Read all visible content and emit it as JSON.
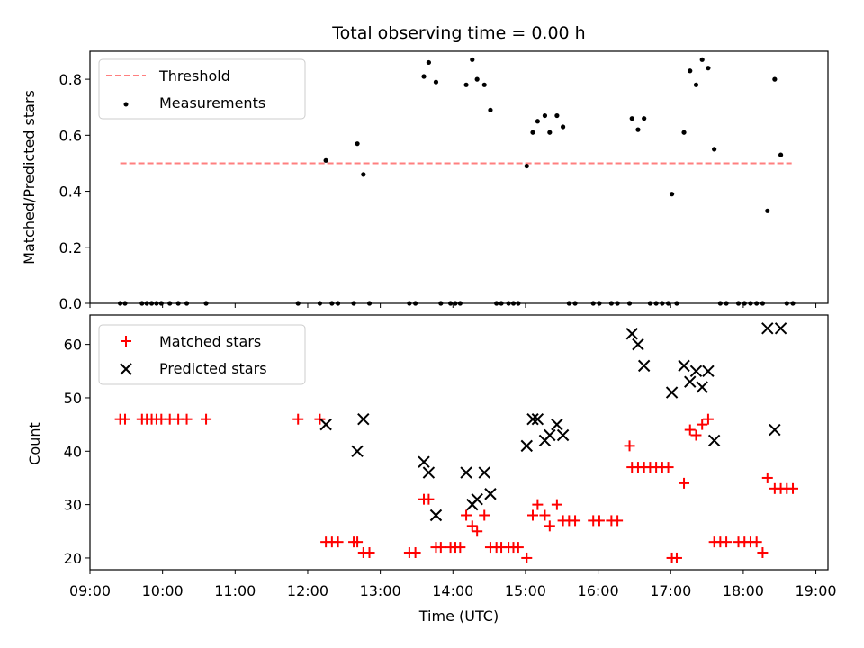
{
  "chart_data": [
    {
      "type": "scatter",
      "title": "Total observing time = 0.00 h",
      "xlabel": "",
      "ylabel": "Matched/Predicted stars",
      "xlim": [
        "09:00",
        "19:10"
      ],
      "ylim": [
        0,
        0.9
      ],
      "yticks": [
        0.0,
        0.2,
        0.4,
        0.6,
        0.8
      ],
      "ytick_labels": [
        "0.0",
        "0.2",
        "0.4",
        "0.6",
        "0.8"
      ],
      "legend": "upper-left",
      "grid": false,
      "threshold": {
        "name": "Threshold",
        "value": 0.5,
        "x_range": [
          "09:25",
          "18:40"
        ],
        "color": "#ff7f7f",
        "style": "dashed"
      },
      "series": [
        {
          "name": "Measurements",
          "color": "#000000",
          "marker": "dot",
          "points": [
            [
              "09:25",
              0
            ],
            [
              "09:29",
              0
            ],
            [
              "09:43",
              0
            ],
            [
              "09:47",
              0
            ],
            [
              "09:51",
              0
            ],
            [
              "09:55",
              0
            ],
            [
              "09:59",
              0
            ],
            [
              "10:06",
              0
            ],
            [
              "10:13",
              0
            ],
            [
              "10:20",
              0
            ],
            [
              "10:36",
              0
            ],
            [
              "11:52",
              0
            ],
            [
              "12:10",
              0
            ],
            [
              "12:15",
              0.51
            ],
            [
              "12:20",
              0
            ],
            [
              "12:25",
              0
            ],
            [
              "12:38",
              0
            ],
            [
              "12:41",
              0.57
            ],
            [
              "12:46",
              0.46
            ],
            [
              "12:51",
              0
            ],
            [
              "13:24",
              0
            ],
            [
              "13:29",
              0
            ],
            [
              "13:36",
              0.81
            ],
            [
              "13:40",
              0.86
            ],
            [
              "13:46",
              0.79
            ],
            [
              "13:50",
              0
            ],
            [
              "13:58",
              0
            ],
            [
              "14:02",
              0
            ],
            [
              "14:06",
              0
            ],
            [
              "14:11",
              0.78
            ],
            [
              "14:16",
              0.87
            ],
            [
              "14:20",
              0.8
            ],
            [
              "14:26",
              0.78
            ],
            [
              "14:31",
              0.69
            ],
            [
              "14:36",
              0
            ],
            [
              "14:40",
              0
            ],
            [
              "14:46",
              0
            ],
            [
              "14:50",
              0
            ],
            [
              "14:54",
              0
            ],
            [
              "15:01",
              0.49
            ],
            [
              "15:06",
              0.61
            ],
            [
              "15:10",
              0.65
            ],
            [
              "15:16",
              0.67
            ],
            [
              "15:20",
              0.61
            ],
            [
              "15:26",
              0.67
            ],
            [
              "15:31",
              0.63
            ],
            [
              "15:36",
              0
            ],
            [
              "15:41",
              0
            ],
            [
              "15:56",
              0
            ],
            [
              "16:01",
              0
            ],
            [
              "16:11",
              0
            ],
            [
              "16:16",
              0
            ],
            [
              "16:26",
              0
            ],
            [
              "16:28",
              0.66
            ],
            [
              "16:33",
              0.62
            ],
            [
              "16:38",
              0.66
            ],
            [
              "16:43",
              0
            ],
            [
              "16:48",
              0
            ],
            [
              "16:53",
              0
            ],
            [
              "16:58",
              0
            ],
            [
              "17:01",
              0.39
            ],
            [
              "17:05",
              0
            ],
            [
              "17:11",
              0.61
            ],
            [
              "17:16",
              0.83
            ],
            [
              "17:21",
              0.78
            ],
            [
              "17:26",
              0.87
            ],
            [
              "17:31",
              0.84
            ],
            [
              "17:36",
              0.55
            ],
            [
              "17:41",
              0
            ],
            [
              "17:46",
              0
            ],
            [
              "17:56",
              0
            ],
            [
              "18:01",
              0
            ],
            [
              "18:06",
              0
            ],
            [
              "18:11",
              0
            ],
            [
              "18:16",
              0
            ],
            [
              "18:20",
              0.33
            ],
            [
              "18:26",
              0.8
            ],
            [
              "18:31",
              0.53
            ],
            [
              "18:36",
              0
            ],
            [
              "18:41",
              0
            ]
          ]
        }
      ]
    },
    {
      "type": "scatter",
      "title": "",
      "xlabel": "Time (UTC)",
      "ylabel": "Count",
      "xlim": [
        "09:00",
        "19:10"
      ],
      "ylim": [
        17.8,
        65.5
      ],
      "yticks": [
        20,
        30,
        40,
        50,
        60
      ],
      "ytick_labels": [
        "20",
        "30",
        "40",
        "50",
        "60"
      ],
      "xticks": [
        "09:00",
        "10:00",
        "11:00",
        "12:00",
        "13:00",
        "14:00",
        "15:00",
        "16:00",
        "17:00",
        "18:00",
        "19:00"
      ],
      "xtick_labels": [
        "09:00",
        "10:00",
        "11:00",
        "12:00",
        "13:00",
        "14:00",
        "15:00",
        "16:00",
        "17:00",
        "18:00",
        "19:00"
      ],
      "legend": "upper-left",
      "grid": false,
      "series": [
        {
          "name": "Matched stars",
          "color": "#ff0000",
          "marker": "plus",
          "points": [
            [
              "09:25",
              46
            ],
            [
              "09:29",
              46
            ],
            [
              "09:43",
              46
            ],
            [
              "09:47",
              46
            ],
            [
              "09:51",
              46
            ],
            [
              "09:55",
              46
            ],
            [
              "09:59",
              46
            ],
            [
              "10:06",
              46
            ],
            [
              "10:13",
              46
            ],
            [
              "10:20",
              46
            ],
            [
              "10:36",
              46
            ],
            [
              "11:52",
              46
            ],
            [
              "12:10",
              46
            ],
            [
              "12:15",
              23
            ],
            [
              "12:20",
              23
            ],
            [
              "12:25",
              23
            ],
            [
              "12:38",
              23
            ],
            [
              "12:41",
              23
            ],
            [
              "12:46",
              21
            ],
            [
              "12:51",
              21
            ],
            [
              "13:24",
              21
            ],
            [
              "13:29",
              21
            ],
            [
              "13:36",
              31
            ],
            [
              "13:40",
              31
            ],
            [
              "13:46",
              22
            ],
            [
              "13:50",
              22
            ],
            [
              "13:58",
              22
            ],
            [
              "14:02",
              22
            ],
            [
              "14:06",
              22
            ],
            [
              "14:11",
              28
            ],
            [
              "14:16",
              26
            ],
            [
              "14:20",
              25
            ],
            [
              "14:26",
              28
            ],
            [
              "14:31",
              22
            ],
            [
              "14:36",
              22
            ],
            [
              "14:40",
              22
            ],
            [
              "14:46",
              22
            ],
            [
              "14:50",
              22
            ],
            [
              "14:54",
              22
            ],
            [
              "15:01",
              20
            ],
            [
              "15:06",
              28
            ],
            [
              "15:10",
              30
            ],
            [
              "15:16",
              28
            ],
            [
              "15:20",
              26
            ],
            [
              "15:26",
              30
            ],
            [
              "15:31",
              27
            ],
            [
              "15:36",
              27
            ],
            [
              "15:41",
              27
            ],
            [
              "15:56",
              27
            ],
            [
              "16:01",
              27
            ],
            [
              "16:11",
              27
            ],
            [
              "16:16",
              27
            ],
            [
              "16:26",
              41
            ],
            [
              "16:28",
              37
            ],
            [
              "16:33",
              37
            ],
            [
              "16:38",
              37
            ],
            [
              "16:43",
              37
            ],
            [
              "16:48",
              37
            ],
            [
              "16:53",
              37
            ],
            [
              "16:58",
              37
            ],
            [
              "17:01",
              20
            ],
            [
              "17:05",
              20
            ],
            [
              "17:11",
              34
            ],
            [
              "17:16",
              44
            ],
            [
              "17:21",
              43
            ],
            [
              "17:26",
              45
            ],
            [
              "17:31",
              46
            ],
            [
              "17:36",
              23
            ],
            [
              "17:41",
              23
            ],
            [
              "17:46",
              23
            ],
            [
              "17:56",
              23
            ],
            [
              "18:01",
              23
            ],
            [
              "18:06",
              23
            ],
            [
              "18:11",
              23
            ],
            [
              "18:16",
              21
            ],
            [
              "18:20",
              35
            ],
            [
              "18:26",
              33
            ],
            [
              "18:31",
              33
            ],
            [
              "18:36",
              33
            ],
            [
              "18:41",
              33
            ]
          ]
        },
        {
          "name": "Predicted stars",
          "color": "#000000",
          "marker": "x",
          "points": [
            [
              "12:15",
              45
            ],
            [
              "12:41",
              40
            ],
            [
              "12:46",
              46
            ],
            [
              "13:36",
              38
            ],
            [
              "13:40",
              36
            ],
            [
              "13:46",
              28
            ],
            [
              "14:11",
              36
            ],
            [
              "14:16",
              30
            ],
            [
              "14:20",
              31
            ],
            [
              "14:26",
              36
            ],
            [
              "14:31",
              32
            ],
            [
              "15:01",
              41
            ],
            [
              "15:06",
              46
            ],
            [
              "15:10",
              46
            ],
            [
              "15:16",
              42
            ],
            [
              "15:20",
              43
            ],
            [
              "15:26",
              45
            ],
            [
              "15:31",
              43
            ],
            [
              "16:28",
              62
            ],
            [
              "16:33",
              60
            ],
            [
              "16:38",
              56
            ],
            [
              "17:01",
              51
            ],
            [
              "17:11",
              56
            ],
            [
              "17:16",
              53
            ],
            [
              "17:21",
              55
            ],
            [
              "17:26",
              52
            ],
            [
              "17:31",
              55
            ],
            [
              "17:36",
              42
            ],
            [
              "18:20",
              63
            ],
            [
              "18:26",
              44
            ],
            [
              "18:31",
              63
            ]
          ]
        }
      ]
    }
  ]
}
